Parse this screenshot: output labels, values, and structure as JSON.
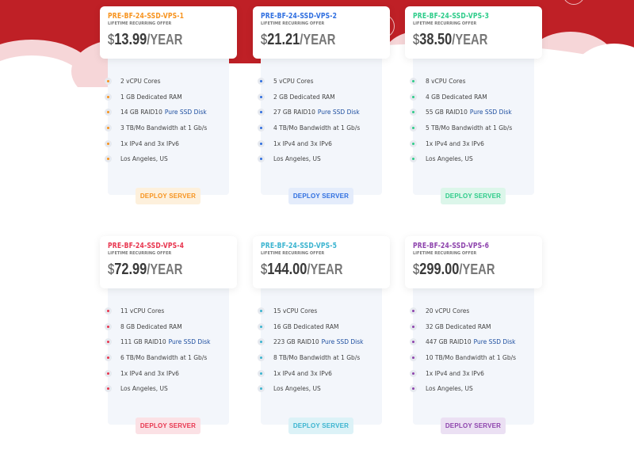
{
  "colors": {
    "hero": "#bf2026"
  },
  "plans": [
    {
      "name": "PRE-BF-24-SSD-VPS-1",
      "subtitle": "LIFETIME RECURRING OFFER",
      "currency": "$",
      "price": "13.99",
      "period": "/YEAR",
      "accent": "#f7931e",
      "button_bg": "#fdf0dc",
      "features": [
        "2 vCPU Cores",
        "1 GB Dedicated RAM",
        "14 GB RAID10",
        "3 TB/Mo Bandwidth at 1 Gb/s",
        "1x IPv4 and 3x IPv6",
        "Los Angeles, US"
      ],
      "ssd_label": "Pure SSD Disk",
      "button": "DEPLOY SERVER"
    },
    {
      "name": "PRE-BF-24-SSD-VPS-2",
      "subtitle": "LIFETIME RECURRING OFFER",
      "currency": "$",
      "price": "21.21",
      "period": "/YEAR",
      "accent": "#2f6fe0",
      "button_bg": "#e4ecfb",
      "features": [
        "5 vCPU Cores",
        "2 GB Dedicated RAM",
        "27 GB RAID10",
        "4 TB/Mo Bandwidth at 1 Gb/s",
        "1x IPv4 and 3x IPv6",
        "Los Angeles, US"
      ],
      "ssd_label": "Pure SSD Disk",
      "button": "DEPLOY SERVER"
    },
    {
      "name": "PRE-BF-24-SSD-VPS-3",
      "subtitle": "LIFETIME RECURRING OFFER",
      "currency": "$",
      "price": "38.50",
      "period": "/YEAR",
      "accent": "#2ecc8a",
      "button_bg": "#dcf6ea",
      "features": [
        "8 vCPU Cores",
        "4 GB Dedicated RAM",
        "55 GB RAID10",
        "5 TB/Mo Bandwidth at 1 Gb/s",
        "1x IPv4 and 3x IPv6",
        "Los Angeles, US"
      ],
      "ssd_label": "Pure SSD Disk",
      "button": "DEPLOY SERVER"
    },
    {
      "name": "PRE-BF-24-SSD-VPS-4",
      "subtitle": "LIFETIME RECURRING OFFER",
      "currency": "$",
      "price": "72.99",
      "period": "/YEAR",
      "accent": "#e8364f",
      "button_bg": "#fbe1e5",
      "features": [
        "11 vCPU Cores",
        "8 GB Dedicated RAM",
        "111 GB RAID10",
        "6 TB/Mo Bandwidth at 1 Gb/s",
        "1x IPv4 and 3x IPv6",
        "Los Angeles, US"
      ],
      "ssd_label": "Pure SSD Disk",
      "button": "DEPLOY SERVER"
    },
    {
      "name": "PRE-BF-24-SSD-VPS-5",
      "subtitle": "LIFETIME RECURRING OFFER",
      "currency": "$",
      "price": "144.00",
      "period": "/YEAR",
      "accent": "#3bb4d0",
      "button_bg": "#dcf2f7",
      "features": [
        "15 vCPU Cores",
        "16 GB Dedicated RAM",
        "223 GB RAID10",
        "8 TB/Mo Bandwidth at 1 Gb/s",
        "1x IPv4 and 3x IPv6",
        "Los Angeles, US"
      ],
      "ssd_label": "Pure SSD Disk",
      "button": "DEPLOY SERVER"
    },
    {
      "name": "PRE-BF-24-SSD-VPS-6",
      "subtitle": "LIFETIME RECURRING OFFER",
      "currency": "$",
      "price": "299.00",
      "period": "/YEAR",
      "accent": "#8e44ad",
      "button_bg": "#ebe0f3",
      "features": [
        "20 vCPU Cores",
        "32 GB Dedicated RAM",
        "447 GB RAID10",
        "10 TB/Mo Bandwidth at 1 Gb/s",
        "1x IPv4 and 3x IPv6",
        "Los Angeles, US"
      ],
      "ssd_label": "Pure SSD Disk",
      "button": "DEPLOY SERVER"
    }
  ]
}
